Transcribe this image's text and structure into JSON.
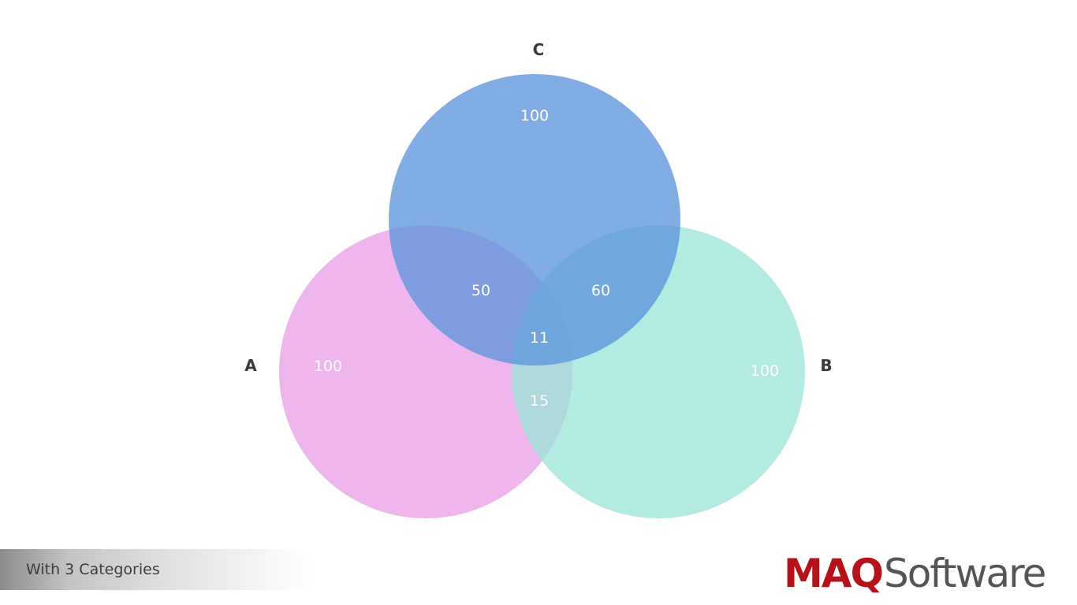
{
  "diagram": {
    "type": "venn",
    "sets": [
      {
        "id": "A",
        "label": "A",
        "value": "100",
        "color": "#e89ae6"
      },
      {
        "id": "B",
        "label": "B",
        "value": "100",
        "color": "#9ee4d8"
      },
      {
        "id": "C",
        "label": "C",
        "value": "100",
        "color": "#5b93db"
      }
    ],
    "intersections": {
      "AC": "50",
      "BC": "60",
      "AB": "15",
      "ABC": "11"
    }
  },
  "footer": {
    "caption": "With 3 Categories"
  },
  "brand": {
    "mark": "MAQ",
    "word": "Software",
    "mark_color": "#b5121b"
  }
}
